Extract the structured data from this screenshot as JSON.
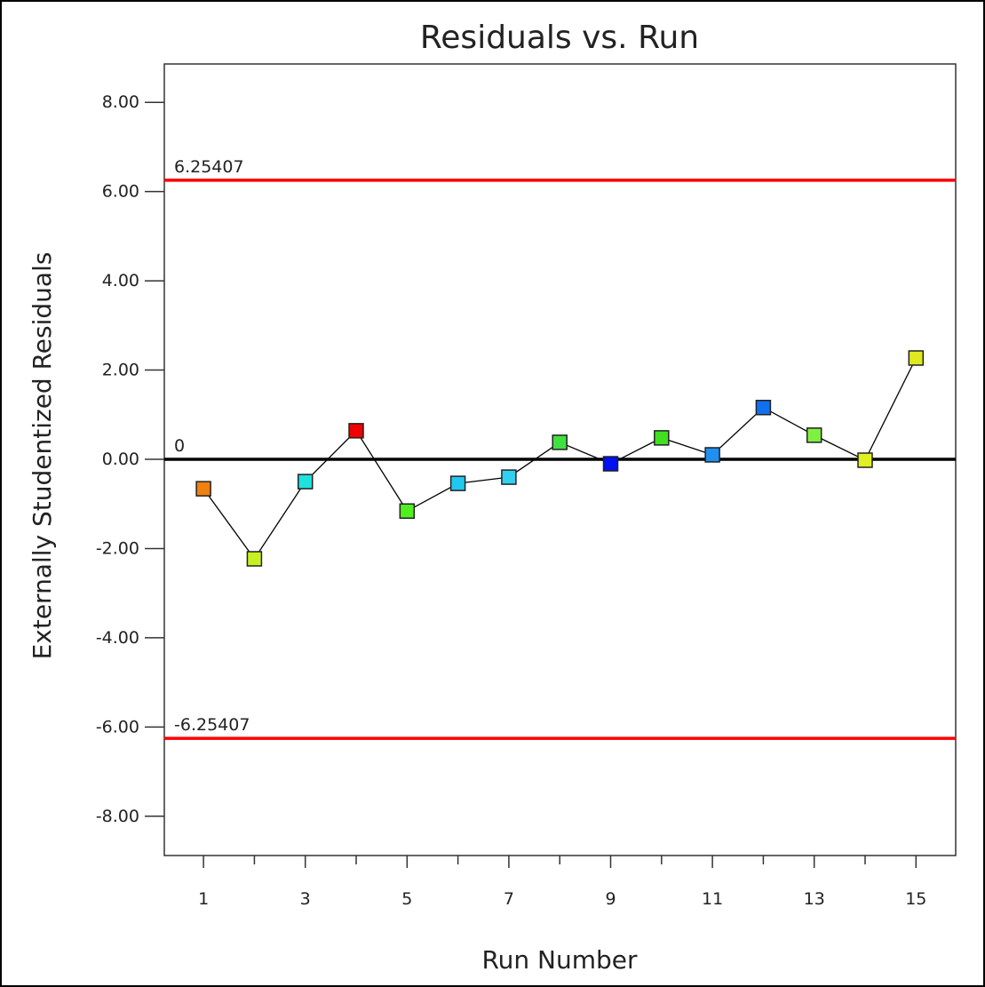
{
  "chart_data": {
    "type": "line",
    "title": "Residuals vs. Run",
    "xlabel": "Run Number",
    "ylabel": "Externally Studentized Residuals",
    "x": [
      1,
      2,
      3,
      4,
      5,
      6,
      7,
      8,
      9,
      10,
      11,
      12,
      13,
      14,
      15
    ],
    "series": [
      {
        "line_color": "#000000",
        "values": [
          -0.66,
          -2.23,
          -0.5,
          0.64,
          -1.16,
          -0.54,
          -0.4,
          0.38,
          -0.1,
          0.48,
          0.1,
          1.16,
          0.54,
          -0.02,
          2.27
        ],
        "colors": [
          "#f08010",
          "#c8f020",
          "#20e0e0",
          "#f00000",
          "#50f020",
          "#20c8f0",
          "#30d0f0",
          "#40e040",
          "#0010f0",
          "#40e020",
          "#2090f0",
          "#1070f0",
          "#80f040",
          "#e0f020",
          "#e0e820"
        ]
      }
    ],
    "xlim": [
      0.23,
      15.78
    ],
    "xticks": [
      1,
      3,
      5,
      7,
      9,
      11,
      13,
      15
    ],
    "xminorticks": [
      2,
      4,
      6,
      8,
      10,
      12,
      14
    ],
    "ylim": [
      -8.88,
      8.86
    ],
    "yticks": [
      {
        "value": -8,
        "label": "-8.00"
      },
      {
        "value": -6,
        "label": "-6.00"
      },
      {
        "value": -4,
        "label": "-4.00"
      },
      {
        "value": -2,
        "label": "-2.00"
      },
      {
        "value": 0,
        "label": "0.00"
      },
      {
        "value": 2,
        "label": "2.00"
      },
      {
        "value": 4,
        "label": "4.00"
      },
      {
        "value": 6,
        "label": "6.00"
      },
      {
        "value": 8,
        "label": "8.00"
      }
    ],
    "reference_lines": [
      {
        "value": 6.25407,
        "label": "6.25407",
        "color": "#ff0000"
      },
      {
        "value": 0,
        "label": "0",
        "color": "#000000"
      },
      {
        "value": -6.25407,
        "label": "-6.25407",
        "color": "#ff0000"
      }
    ]
  }
}
